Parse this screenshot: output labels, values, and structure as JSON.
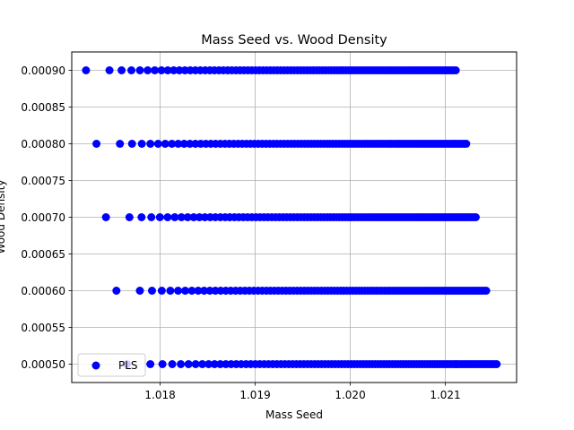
{
  "chart_data": {
    "type": "scatter",
    "title": "Mass Seed vs. Wood Density",
    "xlabel": "Mass Seed",
    "ylabel": "Wood Density",
    "xlim": [
      1.01707,
      1.02175
    ],
    "ylim": [
      0.000475,
      0.000925
    ],
    "x_ticks": [
      "1.018",
      "1.019",
      "1.020",
      "1.021"
    ],
    "x_tick_values": [
      1.018,
      1.019,
      1.02,
      1.021
    ],
    "y_ticks": [
      "0.00050",
      "0.00055",
      "0.00060",
      "0.00065",
      "0.00070",
      "0.00075",
      "0.00080",
      "0.00085",
      "0.00090"
    ],
    "y_tick_values": [
      0.0005,
      0.00055,
      0.0006,
      0.00065,
      0.0007,
      0.00075,
      0.0008,
      0.00085,
      0.0009
    ],
    "grid": true,
    "legend_position": "lower-left",
    "colors": {
      "marker": "#0000ff",
      "grid": "#b0b0b0"
    },
    "series": [
      {
        "name": "PLS",
        "groups": [
          {
            "y": 0.0009,
            "x_min": 1.01722,
            "x_max": 1.02111,
            "points_per_group": 100
          },
          {
            "y": 0.0008,
            "x_min": 1.01733,
            "x_max": 1.02122,
            "points_per_group": 100
          },
          {
            "y": 0.0007,
            "x_min": 1.01743,
            "x_max": 1.02132,
            "points_per_group": 100
          },
          {
            "y": 0.0006,
            "x_min": 1.01754,
            "x_max": 1.02143,
            "points_per_group": 100
          },
          {
            "y": 0.0005,
            "x_min": 1.01765,
            "x_max": 1.02154,
            "points_per_group": 100
          }
        ]
      }
    ]
  }
}
